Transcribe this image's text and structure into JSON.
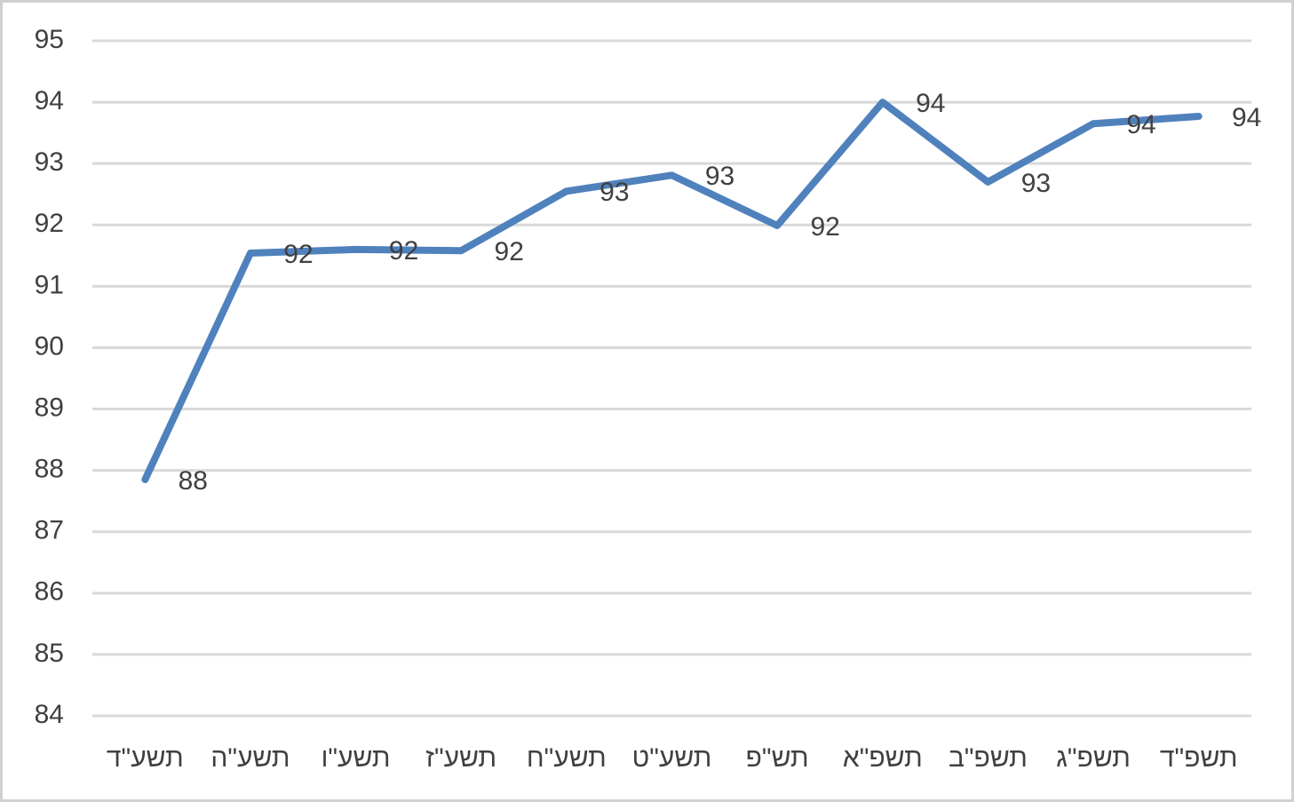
{
  "chart_data": {
    "type": "line",
    "categories": [
      "תשע\"ד",
      "תשע\"ה",
      "תשע\"ו",
      "תשע\"ז",
      "תשע\"ח",
      "תשע\"ט",
      "תש\"פ",
      "תשפ\"א",
      "תשפ\"ב",
      "תשפ\"ג",
      "תשפ\"ד"
    ],
    "series": [
      {
        "color": "#4f81bd",
        "values": [
          87.85,
          91.54,
          91.6,
          91.58,
          92.55,
          92.81,
          91.99,
          94.0,
          92.7,
          93.65,
          93.77
        ],
        "value_labels": [
          "88",
          "92",
          "92",
          "92",
          "93",
          "93",
          "92",
          "94",
          "93",
          "94",
          "94"
        ]
      }
    ],
    "ylim": [
      84,
      95
    ],
    "yticks": [
      84,
      85,
      86,
      87,
      88,
      89,
      90,
      91,
      92,
      93,
      94,
      95
    ],
    "grid": true
  }
}
